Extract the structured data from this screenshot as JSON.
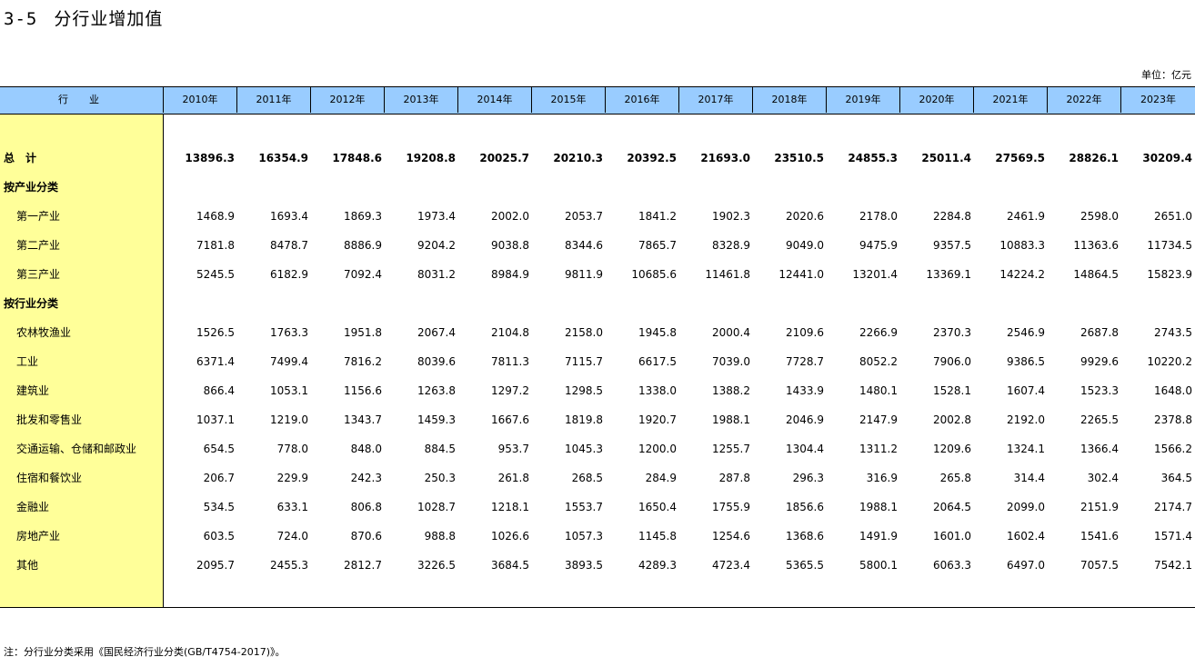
{
  "title": {
    "number": "3-5",
    "text": "分行业增加值"
  },
  "unit_label": "单位：亿元",
  "header": {
    "industry": "行　业",
    "years": [
      "2010年",
      "2011年",
      "2012年",
      "2013年",
      "2014年",
      "2015年",
      "2016年",
      "2017年",
      "2018年",
      "2019年",
      "2020年",
      "2021年",
      "2022年",
      "2023年"
    ]
  },
  "rows": [
    {
      "label": "总　计",
      "bold": true,
      "values": [
        "13896.3",
        "16354.9",
        "17848.6",
        "19208.8",
        "20025.7",
        "20210.3",
        "20392.5",
        "21693.0",
        "23510.5",
        "24855.3",
        "25011.4",
        "27569.5",
        "28826.1",
        "30209.4"
      ]
    },
    {
      "label": "按产业分类",
      "bold": true,
      "values": []
    },
    {
      "label": "第一产业",
      "values": [
        "1468.9",
        "1693.4",
        "1869.3",
        "1973.4",
        "2002.0",
        "2053.7",
        "1841.2",
        "1902.3",
        "2020.6",
        "2178.0",
        "2284.8",
        "2461.9",
        "2598.0",
        "2651.0"
      ]
    },
    {
      "label": "第二产业",
      "values": [
        "7181.8",
        "8478.7",
        "8886.9",
        "9204.2",
        "9038.8",
        "8344.6",
        "7865.7",
        "8328.9",
        "9049.0",
        "9475.9",
        "9357.5",
        "10883.3",
        "11363.6",
        "11734.5"
      ]
    },
    {
      "label": "第三产业",
      "values": [
        "5245.5",
        "6182.9",
        "7092.4",
        "8031.2",
        "8984.9",
        "9811.9",
        "10685.6",
        "11461.8",
        "12441.0",
        "13201.4",
        "13369.1",
        "14224.2",
        "14864.5",
        "15823.9"
      ]
    },
    {
      "label": "按行业分类",
      "bold": true,
      "values": []
    },
    {
      "label": "农林牧渔业",
      "values": [
        "1526.5",
        "1763.3",
        "1951.8",
        "2067.4",
        "2104.8",
        "2158.0",
        "1945.8",
        "2000.4",
        "2109.6",
        "2266.9",
        "2370.3",
        "2546.9",
        "2687.8",
        "2743.5"
      ]
    },
    {
      "label": "工业",
      "values": [
        "6371.4",
        "7499.4",
        "7816.2",
        "8039.6",
        "7811.3",
        "7115.7",
        "6617.5",
        "7039.0",
        "7728.7",
        "8052.2",
        "7906.0",
        "9386.5",
        "9929.6",
        "10220.2"
      ]
    },
    {
      "label": "建筑业",
      "values": [
        "866.4",
        "1053.1",
        "1156.6",
        "1263.8",
        "1297.2",
        "1298.5",
        "1338.0",
        "1388.2",
        "1433.9",
        "1480.1",
        "1528.1",
        "1607.4",
        "1523.3",
        "1648.0"
      ]
    },
    {
      "label": "批发和零售业",
      "values": [
        "1037.1",
        "1219.0",
        "1343.7",
        "1459.3",
        "1667.6",
        "1819.8",
        "1920.7",
        "1988.1",
        "2046.9",
        "2147.9",
        "2002.8",
        "2192.0",
        "2265.5",
        "2378.8"
      ]
    },
    {
      "label": "交通运输、仓储和邮政业",
      "values": [
        "654.5",
        "778.0",
        "848.0",
        "884.5",
        "953.7",
        "1045.3",
        "1200.0",
        "1255.7",
        "1304.4",
        "1311.2",
        "1209.6",
        "1324.1",
        "1366.4",
        "1566.2"
      ]
    },
    {
      "label": "住宿和餐饮业",
      "values": [
        "206.7",
        "229.9",
        "242.3",
        "250.3",
        "261.8",
        "268.5",
        "284.9",
        "287.8",
        "296.3",
        "316.9",
        "265.8",
        "314.4",
        "302.4",
        "364.5"
      ]
    },
    {
      "label": "金融业",
      "values": [
        "534.5",
        "633.1",
        "806.8",
        "1028.7",
        "1218.1",
        "1553.7",
        "1650.4",
        "1755.9",
        "1856.6",
        "1988.1",
        "2064.5",
        "2099.0",
        "2151.9",
        "2174.7"
      ]
    },
    {
      "label": "房地产业",
      "values": [
        "603.5",
        "724.0",
        "870.6",
        "988.8",
        "1026.6",
        "1057.3",
        "1145.8",
        "1254.6",
        "1368.6",
        "1491.9",
        "1601.0",
        "1602.4",
        "1541.6",
        "1571.4"
      ]
    },
    {
      "label": "其他",
      "values": [
        "2095.7",
        "2455.3",
        "2812.7",
        "3226.5",
        "3684.5",
        "3893.5",
        "4289.3",
        "4723.4",
        "5365.5",
        "5800.1",
        "6063.3",
        "6497.0",
        "7057.5",
        "7542.1"
      ]
    }
  ],
  "note": "注：分行业分类采用《国民经济行业分类(GB/T4754-2017)》。"
}
